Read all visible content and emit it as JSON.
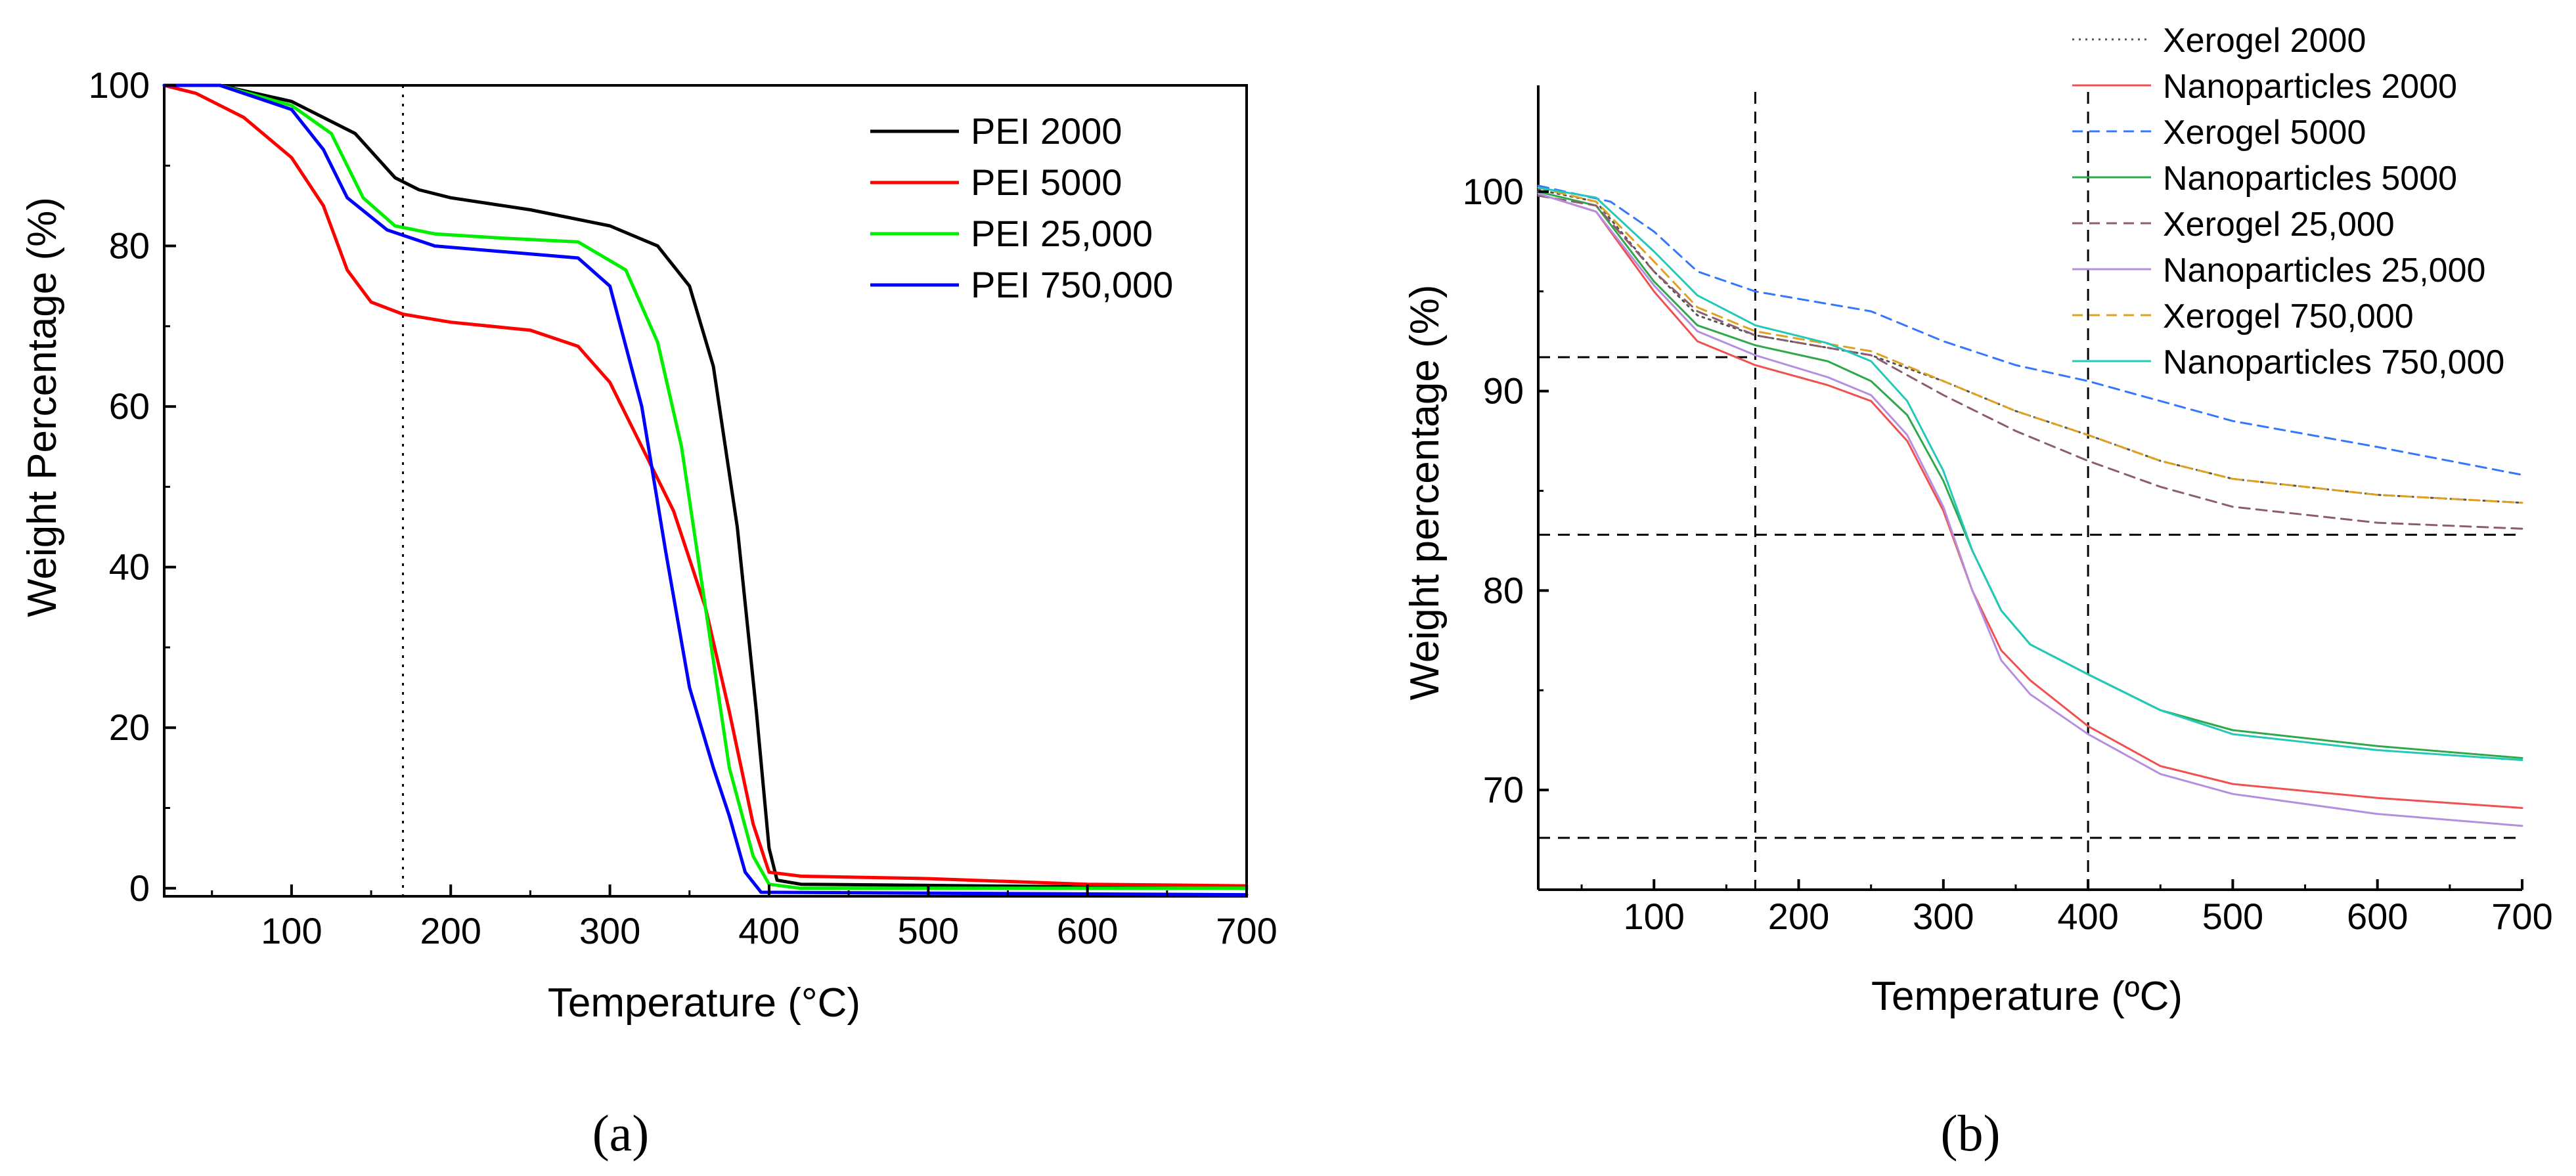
{
  "chart_data": [
    {
      "type": "line",
      "panel_label": "(a)",
      "xlabel": "Temperature (°C)",
      "ylabel": "Weight Percentage (%)",
      "xlim": [
        20,
        700
      ],
      "ylim": [
        -1,
        100
      ],
      "x_ticks": [
        100,
        200,
        300,
        400,
        500,
        600,
        700
      ],
      "y_ticks": [
        0,
        20,
        40,
        60,
        80,
        100
      ],
      "legend_position": "top-right",
      "reference_lines": [
        {
          "axis": "x",
          "value": 170,
          "style": "dotted"
        }
      ],
      "series": [
        {
          "name": "PEI 2000",
          "color": "#000000",
          "dash": "solid",
          "points": [
            [
              20,
              100
            ],
            [
              55,
              100
            ],
            [
              100,
              98
            ],
            [
              140,
              94
            ],
            [
              165,
              88.5
            ],
            [
              180,
              87
            ],
            [
              200,
              86
            ],
            [
              250,
              84.5
            ],
            [
              300,
              82.5
            ],
            [
              330,
              80
            ],
            [
              350,
              75
            ],
            [
              365,
              65
            ],
            [
              380,
              45
            ],
            [
              392,
              22
            ],
            [
              400,
              5
            ],
            [
              405,
              1
            ],
            [
              420,
              0.5
            ],
            [
              700,
              0
            ]
          ]
        },
        {
          "name": "PEI 5000",
          "color": "#ff0000",
          "dash": "solid",
          "points": [
            [
              20,
              100
            ],
            [
              40,
              99
            ],
            [
              70,
              96
            ],
            [
              100,
              91
            ],
            [
              120,
              85
            ],
            [
              135,
              77
            ],
            [
              150,
              73
            ],
            [
              170,
              71.5
            ],
            [
              200,
              70.5
            ],
            [
              250,
              69.5
            ],
            [
              280,
              67.5
            ],
            [
              300,
              63
            ],
            [
              320,
              55
            ],
            [
              340,
              47
            ],
            [
              360,
              35
            ],
            [
              375,
              22
            ],
            [
              390,
              8
            ],
            [
              400,
              2
            ],
            [
              420,
              1.5
            ],
            [
              500,
              1.2
            ],
            [
              600,
              0.5
            ],
            [
              700,
              0.3
            ]
          ]
        },
        {
          "name": "PEI 25,000",
          "color": "#00ee00",
          "dash": "solid",
          "points": [
            [
              20,
              100
            ],
            [
              55,
              100
            ],
            [
              100,
              97.5
            ],
            [
              125,
              94
            ],
            [
              145,
              86
            ],
            [
              165,
              82.5
            ],
            [
              190,
              81.5
            ],
            [
              230,
              81
            ],
            [
              280,
              80.5
            ],
            [
              310,
              77
            ],
            [
              330,
              68
            ],
            [
              345,
              55
            ],
            [
              360,
              35
            ],
            [
              375,
              15
            ],
            [
              390,
              4
            ],
            [
              400,
              0.5
            ],
            [
              420,
              0
            ],
            [
              700,
              0
            ]
          ]
        },
        {
          "name": "PEI 750,000",
          "color": "#0000ff",
          "dash": "solid",
          "points": [
            [
              20,
              100
            ],
            [
              55,
              100
            ],
            [
              100,
              97
            ],
            [
              120,
              92
            ],
            [
              135,
              86
            ],
            [
              160,
              82
            ],
            [
              190,
              80
            ],
            [
              250,
              79
            ],
            [
              280,
              78.5
            ],
            [
              300,
              75
            ],
            [
              320,
              60
            ],
            [
              335,
              42
            ],
            [
              350,
              25
            ],
            [
              365,
              15
            ],
            [
              375,
              9
            ],
            [
              385,
              2
            ],
            [
              395,
              -0.5
            ],
            [
              700,
              -0.8
            ]
          ]
        }
      ]
    },
    {
      "type": "line",
      "panel_label": "(b)",
      "xlabel": "Temperature (ºC)",
      "ylabel": "Weight percentage (%)",
      "xlim": [
        20,
        700
      ],
      "ylim": [
        65,
        105
      ],
      "x_ticks": [
        100,
        200,
        300,
        400,
        500,
        600,
        700
      ],
      "y_ticks": [
        70,
        80,
        90,
        100
      ],
      "legend_position": "top-right",
      "reference_lines": [
        {
          "axis": "x",
          "value": 170,
          "style": "dashed"
        },
        {
          "axis": "x",
          "value": 400,
          "style": "dashed"
        },
        {
          "axis": "y",
          "value": 91.7,
          "style": "dashed",
          "x_end": 170
        },
        {
          "axis": "y",
          "value": 82.8,
          "style": "dashed"
        },
        {
          "axis": "y",
          "value": 67.6,
          "style": "dashed"
        }
      ],
      "series": [
        {
          "name": "Xerogel 2000",
          "color": "#555555",
          "dash": "dotted",
          "points": [
            [
              20,
              100.1
            ],
            [
              60,
              99.5
            ],
            [
              100,
              96
            ],
            [
              130,
              93.8
            ],
            [
              170,
              92.8
            ],
            [
              250,
              91.8
            ],
            [
              300,
              90.5
            ],
            [
              350,
              89
            ],
            [
              400,
              87.8
            ],
            [
              450,
              86.5
            ],
            [
              500,
              85.6
            ],
            [
              600,
              84.8
            ],
            [
              700,
              84.4
            ]
          ]
        },
        {
          "name": "Nanoparticles 2000",
          "color": "#f05050",
          "dash": "solid",
          "points": [
            [
              20,
              99.9
            ],
            [
              60,
              99
            ],
            [
              100,
              95
            ],
            [
              130,
              92.5
            ],
            [
              170,
              91.3
            ],
            [
              220,
              90.3
            ],
            [
              250,
              89.5
            ],
            [
              275,
              87.5
            ],
            [
              300,
              84
            ],
            [
              320,
              80
            ],
            [
              340,
              77
            ],
            [
              360,
              75.5
            ],
            [
              400,
              73.2
            ],
            [
              450,
              71.2
            ],
            [
              500,
              70.3
            ],
            [
              600,
              69.6
            ],
            [
              700,
              69.1
            ]
          ]
        },
        {
          "name": "Xerogel 5000",
          "color": "#3377ff",
          "dash": "dashed",
          "points": [
            [
              20,
              100.3
            ],
            [
              70,
              99.5
            ],
            [
              100,
              98
            ],
            [
              130,
              96
            ],
            [
              170,
              95
            ],
            [
              250,
              94
            ],
            [
              300,
              92.5
            ],
            [
              350,
              91.3
            ],
            [
              400,
              90.5
            ],
            [
              500,
              88.5
            ],
            [
              600,
              87.2
            ],
            [
              700,
              85.8
            ]
          ]
        },
        {
          "name": "Nanoparticles 5000",
          "color": "#2ea84a",
          "dash": "solid",
          "points": [
            [
              20,
              100
            ],
            [
              60,
              99.3
            ],
            [
              100,
              95.5
            ],
            [
              130,
              93.3
            ],
            [
              170,
              92.3
            ],
            [
              220,
              91.5
            ],
            [
              250,
              90.5
            ],
            [
              275,
              88.8
            ],
            [
              300,
              85.5
            ],
            [
              320,
              82
            ],
            [
              340,
              79
            ],
            [
              360,
              77.3
            ],
            [
              400,
              75.8
            ],
            [
              450,
              74
            ],
            [
              500,
              73
            ],
            [
              600,
              72.2
            ],
            [
              700,
              71.6
            ]
          ]
        },
        {
          "name": "Xerogel 25,000",
          "color": "#8b5d6d",
          "dash": "dashed",
          "points": [
            [
              20,
              99.8
            ],
            [
              60,
              99.3
            ],
            [
              100,
              96
            ],
            [
              130,
              94
            ],
            [
              170,
              92.8
            ],
            [
              250,
              91.8
            ],
            [
              300,
              89.8
            ],
            [
              350,
              88
            ],
            [
              400,
              86.5
            ],
            [
              450,
              85.2
            ],
            [
              500,
              84.2
            ],
            [
              600,
              83.4
            ],
            [
              700,
              83.1
            ]
          ]
        },
        {
          "name": "Nanoparticles 25,000",
          "color": "#b48ee0",
          "dash": "solid",
          "points": [
            [
              20,
              99.9
            ],
            [
              60,
              99
            ],
            [
              100,
              95.3
            ],
            [
              130,
              93
            ],
            [
              170,
              91.8
            ],
            [
              220,
              90.7
            ],
            [
              250,
              89.8
            ],
            [
              275,
              87.8
            ],
            [
              300,
              84.2
            ],
            [
              320,
              80
            ],
            [
              340,
              76.5
            ],
            [
              360,
              74.8
            ],
            [
              400,
              72.8
            ],
            [
              450,
              70.8
            ],
            [
              500,
              69.8
            ],
            [
              600,
              68.8
            ],
            [
              700,
              68.2
            ]
          ]
        },
        {
          "name": "Xerogel 750,000",
          "color": "#e0a020",
          "dash": "dashed",
          "points": [
            [
              20,
              100.2
            ],
            [
              60,
              99.5
            ],
            [
              100,
              96.5
            ],
            [
              130,
              94.2
            ],
            [
              170,
              93
            ],
            [
              250,
              92
            ],
            [
              300,
              90.5
            ],
            [
              350,
              89
            ],
            [
              400,
              87.8
            ],
            [
              450,
              86.5
            ],
            [
              500,
              85.6
            ],
            [
              600,
              84.8
            ],
            [
              700,
              84.4
            ]
          ]
        },
        {
          "name": "Nanoparticles 750,000",
          "color": "#22c8b8",
          "dash": "solid",
          "points": [
            [
              20,
              100.2
            ],
            [
              60,
              99.7
            ],
            [
              100,
              97
            ],
            [
              130,
              94.8
            ],
            [
              170,
              93.3
            ],
            [
              220,
              92.4
            ],
            [
              250,
              91.5
            ],
            [
              275,
              89.5
            ],
            [
              300,
              86
            ],
            [
              320,
              82
            ],
            [
              340,
              79
            ],
            [
              360,
              77.3
            ],
            [
              400,
              75.8
            ],
            [
              450,
              74
            ],
            [
              500,
              72.8
            ],
            [
              600,
              72
            ],
            [
              700,
              71.5
            ]
          ]
        }
      ]
    }
  ]
}
